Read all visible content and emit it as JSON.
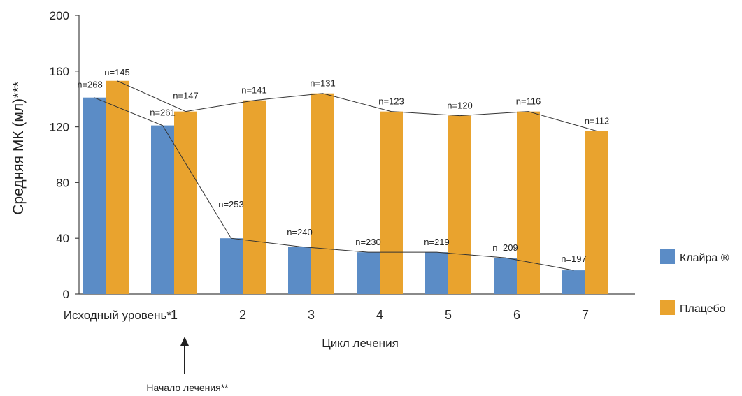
{
  "chart_data": {
    "type": "bar",
    "ylabel": "Средняя МК (мл)***",
    "xlabel": "Цикл лечения",
    "ylim": [
      0,
      200
    ],
    "yticks": [
      "0",
      "40",
      "80",
      "120",
      "160",
      "200"
    ],
    "categories": [
      "Исходный уровень*",
      "1",
      "2",
      "3",
      "4",
      "5",
      "6",
      "7"
    ],
    "series": [
      {
        "name": "Клайра ®",
        "color": "#5b8cc6",
        "values": [
          141,
          121,
          40,
          34,
          30,
          30,
          26,
          17
        ],
        "labels": [
          "n=268",
          "n=261",
          "n=253",
          "n=240",
          "n=230",
          "n=219",
          "n=209",
          "n=197"
        ]
      },
      {
        "name": "Плацебо",
        "color": "#e9a32e",
        "values": [
          153,
          131,
          139,
          144,
          131,
          128,
          131,
          117
        ],
        "labels": [
          "n=145",
          "n=147",
          "n=141",
          "n=131",
          "n=123",
          "n=120",
          "n=116",
          "n=112"
        ]
      }
    ],
    "annotation": "Начало лечения**",
    "legend_position": "right",
    "grid": false
  }
}
